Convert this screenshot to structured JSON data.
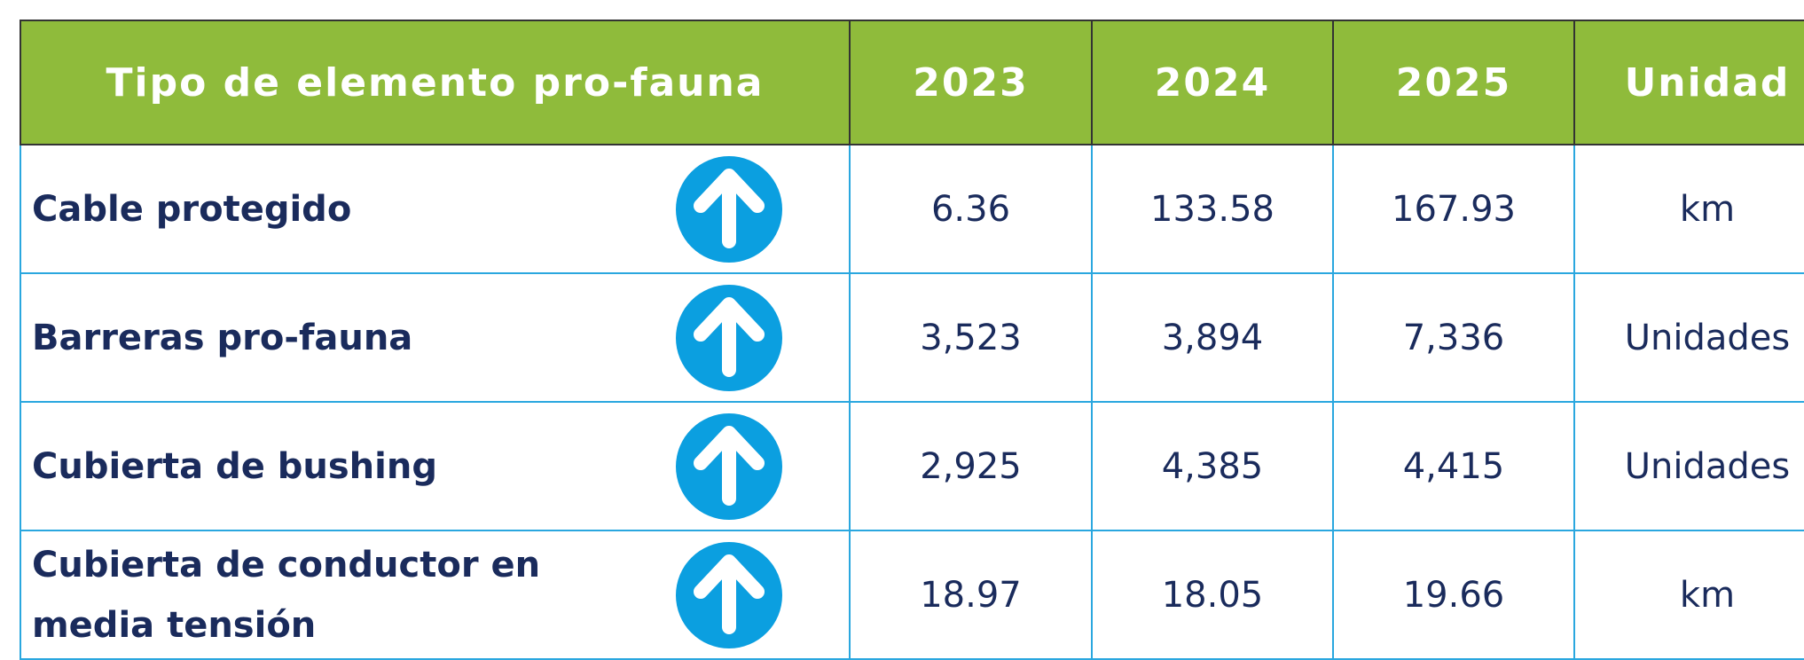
{
  "table": {
    "header": [
      "Tipo de elemento pro-fauna",
      "2023",
      "2024",
      "2025",
      "Unidad"
    ],
    "rows": [
      [
        "Cable protegido",
        "6.36",
        "133.58",
        "167.93",
        "km"
      ],
      [
        "Barreras pro-fauna",
        "3,523",
        "3,894",
        "7,336",
        "Unidades"
      ],
      [
        "Cubierta de bushing",
        "2,925",
        "4,385",
        "4,415",
        "Unidades"
      ],
      [
        "Cubierta de conductor en media tensión",
        "18.97",
        "18.05",
        "19.66",
        "km"
      ]
    ]
  }
}
